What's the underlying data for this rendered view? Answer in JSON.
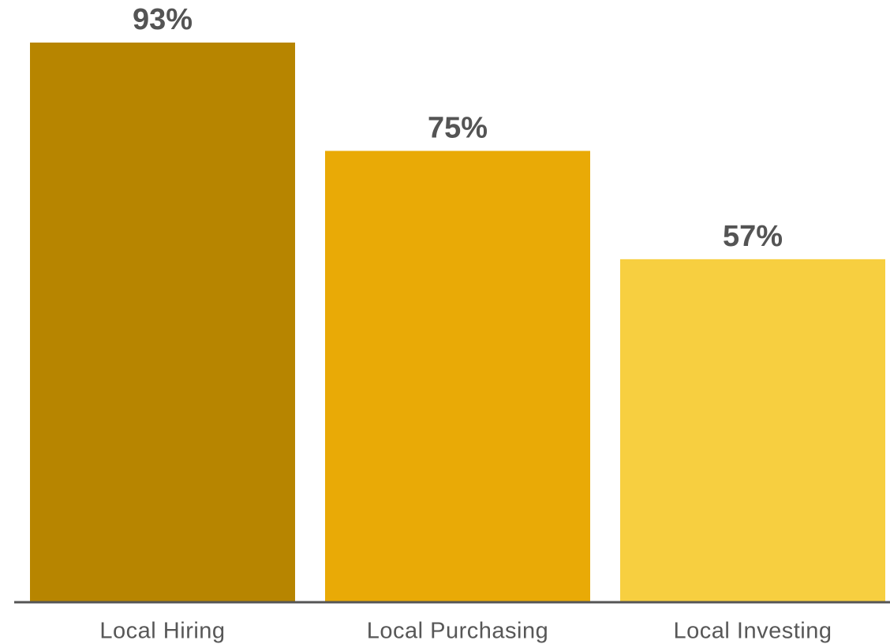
{
  "chart_data": {
    "type": "bar",
    "categories": [
      "Local Hiring",
      "Local Purchasing",
      "Local Investing"
    ],
    "values": [
      93,
      75,
      57
    ],
    "value_labels": [
      "93%",
      "75%",
      "57%"
    ],
    "colors": [
      "#b78500",
      "#e9aa06",
      "#f7cf40"
    ]
  }
}
